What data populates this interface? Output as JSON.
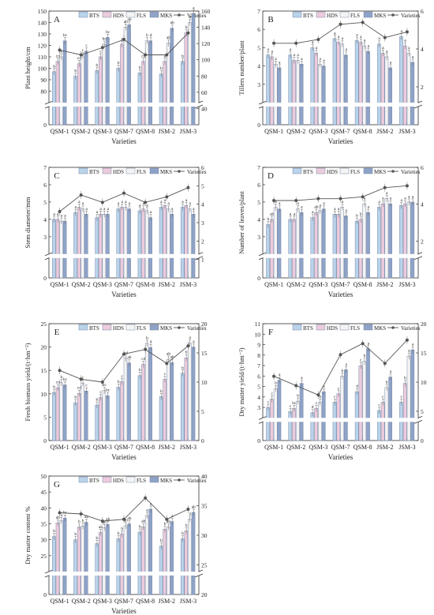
{
  "series_colors": {
    "BTS": "#b9d3ea",
    "HDS": "#eccbdc",
    "FLS": "#f4f4f4",
    "MKS": "#8fa3c8",
    "Varieties": "#555555"
  },
  "legend_labels": [
    "BTS",
    "HDS",
    "FLS",
    "MKS",
    "Varieties"
  ],
  "chart_data": [
    {
      "panel": "A",
      "type": "bar",
      "categories": [
        "QSM-1",
        "QSM-2",
        "QSM-3",
        "QSM-7",
        "QSM-8",
        "JSM-2",
        "JSM-3"
      ],
      "xlabel": "Varieties",
      "ylabel": "Plant height/cm",
      "ylim_lower": [
        0,
        10
      ],
      "ylim": [
        70,
        150
      ],
      "y2lim": [
        20,
        160
      ],
      "yticks_lower": [
        0
      ],
      "yticks": [
        80,
        90,
        100,
        110,
        120,
        130,
        140,
        150
      ],
      "y2ticks": [
        40,
        60,
        80,
        100,
        120,
        140,
        160
      ],
      "series": [
        {
          "name": "BTS",
          "values": [
            97,
            93,
            98,
            100,
            96,
            95,
            106
          ],
          "labels": [
            "b",
            "b",
            "b",
            "b",
            "b",
            "b",
            "b"
          ]
        },
        {
          "name": "HDS",
          "values": [
            106,
            104,
            110,
            121,
            106,
            106,
            131
          ],
          "labels": [
            "cd",
            "cd",
            "c",
            "c",
            "cd",
            "a",
            "b"
          ]
        },
        {
          "name": "FLS",
          "values": [
            110,
            111,
            121,
            136,
            124,
            122,
            140
          ],
          "labels": [
            "bc",
            "c",
            "bc",
            "ab",
            "b",
            "ab",
            "a"
          ]
        },
        {
          "name": "MKS",
          "values": [
            124,
            115,
            127,
            138,
            124,
            135,
            148
          ],
          "labels": [
            "bc",
            "c",
            "bc",
            "ab",
            "d",
            "ab",
            "a"
          ]
        }
      ],
      "varieties": [
        112,
        106,
        115,
        125,
        106,
        106,
        133
      ]
    },
    {
      "panel": "B",
      "type": "bar",
      "categories": [
        "QSM-1",
        "QSM-2",
        "QSM-3",
        "QSM-7",
        "QSM-8",
        "JSM-2",
        "JSM-3"
      ],
      "xlabel": "Varieties",
      "ylabel": "Tillers number/plant",
      "ylim_lower": [
        0,
        1
      ],
      "ylim": [
        2,
        7
      ],
      "y2lim": [
        0,
        6
      ],
      "yticks_lower": [
        0
      ],
      "yticks": [
        3,
        4,
        5,
        6,
        7
      ],
      "y2ticks": [
        2,
        4,
        6
      ],
      "series": [
        {
          "name": "BTS",
          "values": [
            4.6,
            4.6,
            5.0,
            5.5,
            5.4,
            5.2,
            5.6
          ],
          "labels": [
            "a",
            "a",
            "a",
            "a",
            "a",
            "a",
            "a"
          ]
        },
        {
          "name": "HDS",
          "values": [
            4.5,
            4.3,
            4.7,
            5.3,
            5.3,
            4.7,
            5.1
          ],
          "labels": [
            "a",
            "a",
            "a",
            "a",
            "a",
            "a",
            "a"
          ]
        },
        {
          "name": "FLS",
          "values": [
            4.1,
            4.3,
            4.1,
            5.2,
            5.1,
            4.5,
            4.7
          ],
          "labels": [
            "a",
            "a",
            "a",
            "a",
            "a",
            "a",
            "a"
          ]
        },
        {
          "name": "MKS",
          "values": [
            3.9,
            4.1,
            4.0,
            4.6,
            4.8,
            3.9,
            4.2
          ],
          "labels": [
            "a",
            "a",
            "a",
            "a",
            "a",
            "a",
            "a"
          ]
        }
      ],
      "varieties": [
        4.3,
        4.3,
        4.5,
        5.3,
        5.4,
        4.6,
        4.9
      ]
    },
    {
      "panel": "C",
      "type": "bar",
      "categories": [
        "QSM-1",
        "QSM-2",
        "QSM-3",
        "QSM-7",
        "QSM-8",
        "JSM-2",
        "JSM-3"
      ],
      "xlabel": "Varieties",
      "ylabel": "Stem diameter/mm",
      "ylim_lower": [
        0,
        1
      ],
      "ylim": [
        2,
        7
      ],
      "y2lim": [
        0,
        6
      ],
      "yticks_lower": [
        0
      ],
      "yticks": [
        3,
        4,
        5,
        6,
        7
      ],
      "y2ticks": [
        1,
        2,
        3,
        4,
        5,
        6
      ],
      "series": [
        {
          "name": "BTS",
          "values": [
            4.0,
            4.4,
            4.1,
            4.6,
            4.5,
            4.7,
            4.7
          ],
          "labels": [
            "a",
            "a",
            "a",
            "a",
            "a",
            "a",
            "a"
          ]
        },
        {
          "name": "HDS",
          "values": [
            4.0,
            4.7,
            4.3,
            4.7,
            4.6,
            4.8,
            4.8
          ],
          "labels": [
            "a",
            "a",
            "a",
            "a",
            "a",
            "a",
            "a"
          ]
        },
        {
          "name": "FLS",
          "values": [
            3.9,
            4.6,
            4.3,
            4.7,
            4.5,
            4.6,
            4.6
          ],
          "labels": [
            "a",
            "a",
            "a",
            "a",
            "a",
            "a",
            "a"
          ]
        },
        {
          "name": "MKS",
          "values": [
            3.9,
            4.3,
            4.3,
            4.6,
            4.1,
            4.3,
            4.3
          ],
          "labels": [
            "a",
            "a",
            "a",
            "a",
            "a",
            "a",
            "a"
          ]
        }
      ],
      "varieties": [
        3.6,
        4.5,
        4.1,
        4.6,
        4.1,
        4.4,
        4.9
      ]
    },
    {
      "panel": "D",
      "type": "bar",
      "categories": [
        "QSM-1",
        "QSM-2",
        "QSM-3",
        "QSM-7",
        "QSM-8",
        "JSM-2",
        "JSM-3"
      ],
      "xlabel": "Varieties",
      "ylabel": "Number of leaves/plant",
      "ylim_lower": [
        0,
        1
      ],
      "ylim": [
        2,
        7
      ],
      "y2lim": [
        0,
        6
      ],
      "yticks_lower": [
        0
      ],
      "yticks": [
        3,
        4,
        5,
        6,
        7
      ],
      "y2ticks": [
        2,
        4,
        6
      ],
      "series": [
        {
          "name": "BTS",
          "values": [
            3.7,
            4.0,
            4.1,
            4.3,
            3.9,
            4.7,
            4.8
          ],
          "labels": [
            "b",
            "a",
            "a",
            "a",
            "b",
            "a",
            "a"
          ]
        },
        {
          "name": "HDS",
          "values": [
            4.0,
            4.0,
            4.4,
            4.3,
            4.0,
            4.9,
            4.9
          ],
          "labels": [
            "ab",
            "a",
            "ab",
            "a",
            "b",
            "a",
            "a"
          ]
        },
        {
          "name": "FLS",
          "values": [
            4.7,
            4.6,
            4.5,
            4.7,
            4.9,
            5.2,
            5.0
          ],
          "labels": [
            "a",
            "a",
            "a",
            "a",
            "a",
            "a",
            "a"
          ]
        },
        {
          "name": "MKS",
          "values": [
            4.6,
            4.4,
            4.6,
            4.2,
            4.4,
            4.9,
            5.0
          ],
          "labels": [
            "a",
            "a",
            "a",
            "a",
            "a",
            "a",
            "a"
          ]
        }
      ],
      "varieties": [
        4.2,
        4.2,
        4.3,
        4.3,
        4.4,
        4.9,
        5.0
      ]
    },
    {
      "panel": "E",
      "type": "bar",
      "categories": [
        "QSM-1",
        "QSM-2",
        "QSM-3",
        "QSM-7",
        "QSM-8",
        "JSM-2",
        "JSM-3"
      ],
      "xlabel": "Varieties",
      "ylabel": "Fresh biomass yield/(t·hm⁻²)",
      "ylim": [
        0,
        25
      ],
      "y2lim": [
        0,
        20
      ],
      "yticks": [
        0,
        5,
        10,
        15,
        20,
        25
      ],
      "y2ticks": [
        0,
        5,
        10,
        15,
        20
      ],
      "series": [
        {
          "name": "BTS",
          "values": [
            10.3,
            8.1,
            7.6,
            11.4,
            13.9,
            9.4,
            14.4
          ],
          "labels": [
            "b",
            "b",
            "b",
            "b",
            "b",
            "b",
            "b"
          ]
        },
        {
          "name": "HDS",
          "values": [
            11.3,
            10.1,
            9.2,
            12.6,
            16.3,
            13.1,
            17.7
          ],
          "labels": [
            "cd",
            "cd",
            "c",
            "c",
            "cd",
            "c",
            "b"
          ]
        },
        {
          "name": "FLS",
          "values": [
            12.4,
            12.3,
            10.7,
            17.6,
            20.8,
            17.4,
            20.9
          ],
          "labels": [
            "b",
            "c",
            "bc",
            "cd",
            "b",
            "ab",
            "a"
          ]
        },
        {
          "name": "MKS",
          "values": [
            11.9,
            10.6,
            9.6,
            16.6,
            19.9,
            16.7,
            20.0
          ],
          "labels": [
            "bc",
            "c",
            "bc",
            "ab",
            "d",
            "ab",
            "a"
          ]
        }
      ],
      "varieties": [
        12.0,
        10.5,
        10.0,
        14.8,
        15.6,
        13.2,
        16.2
      ]
    },
    {
      "panel": "F",
      "type": "bar",
      "categories": [
        "QSM-1",
        "QSM-2",
        "QSM-3",
        "QSM-7",
        "QSM-8",
        "JSM-2",
        "JSM-3"
      ],
      "xlabel": "Varieties",
      "ylabel": "Dry matter yield/(t·hm⁻²)",
      "ylim_lower": [
        0,
        1
      ],
      "ylim": [
        2,
        11
      ],
      "y2lim": [
        0,
        20
      ],
      "yticks_lower": [
        0
      ],
      "yticks": [
        3,
        4,
        5,
        6,
        7,
        8,
        9,
        10,
        11
      ],
      "y2ticks": [
        0,
        5,
        10,
        15,
        20
      ],
      "series": [
        {
          "name": "BTS",
          "values": [
            3.0,
            2.6,
            2.5,
            3.5,
            4.5,
            2.7,
            3.5
          ],
          "labels": [
            "c",
            "c",
            "d",
            "c",
            "d",
            "c",
            "c"
          ]
        },
        {
          "name": "HDS",
          "values": [
            3.8,
            2.9,
            2.9,
            4.3,
            7.0,
            3.5,
            5.3
          ],
          "labels": [
            "c",
            "bc",
            "c",
            "c",
            "c",
            "c",
            "b"
          ]
        },
        {
          "name": "FLS",
          "values": [
            4.8,
            3.6,
            3.5,
            6.0,
            7.4,
            4.9,
            7.9
          ],
          "labels": [
            "b",
            "b",
            "b",
            "b",
            "b",
            "b",
            "a"
          ]
        },
        {
          "name": "MKS",
          "values": [
            5.6,
            5.3,
            4.5,
            6.6,
            8.6,
            5.9,
            8.5
          ],
          "labels": [
            "a",
            "a",
            "a",
            "a",
            "a",
            "a",
            "a"
          ]
        }
      ],
      "varieties": [
        11.0,
        9.4,
        7.8,
        14.7,
        16.6,
        13.2,
        17.2
      ]
    },
    {
      "panel": "G",
      "type": "bar",
      "categories": [
        "QSM-1",
        "QSM-2",
        "QSM-3",
        "QSM-7",
        "QSM-8",
        "JSM-2",
        "JSM-3"
      ],
      "xlabel": "Varieties",
      "ylabel": "Dry matter content %",
      "ylim_lower": [
        0,
        10
      ],
      "ylim": [
        20,
        50
      ],
      "y2lim": [
        20,
        40
      ],
      "yticks_lower": [
        0
      ],
      "yticks": [
        25,
        30,
        35,
        40,
        45,
        50
      ],
      "y2ticks": [
        20,
        25,
        30,
        35,
        40
      ],
      "series": [
        {
          "name": "BTS",
          "values": [
            31.0,
            30.0,
            28.8,
            30.3,
            32.4,
            28.0,
            30.3
          ],
          "labels": [
            "b",
            "b",
            "b",
            "b",
            "b",
            "b",
            "b"
          ]
        },
        {
          "name": "HDS",
          "values": [
            35.3,
            34.0,
            32.3,
            31.8,
            34.1,
            33.3,
            32.8
          ],
          "labels": [
            "ab",
            "b",
            "ab",
            "b",
            "ab",
            "b",
            "b"
          ]
        },
        {
          "name": "FLS",
          "values": [
            36.0,
            34.3,
            33.8,
            34.4,
            37.6,
            34.0,
            36.5
          ],
          "labels": [
            "a",
            "b",
            "ab",
            "ab",
            "a",
            "ab",
            "a"
          ]
        },
        {
          "name": "MKS",
          "values": [
            36.8,
            35.5,
            34.8,
            35.0,
            39.6,
            35.7,
            38.6
          ],
          "labels": [
            "bc",
            "ab",
            "ab",
            "ab",
            "a",
            "a",
            "ab"
          ]
        }
      ],
      "varieties": [
        33.8,
        33.6,
        32.4,
        32.7,
        36.3,
        32.7,
        34.4
      ]
    }
  ]
}
